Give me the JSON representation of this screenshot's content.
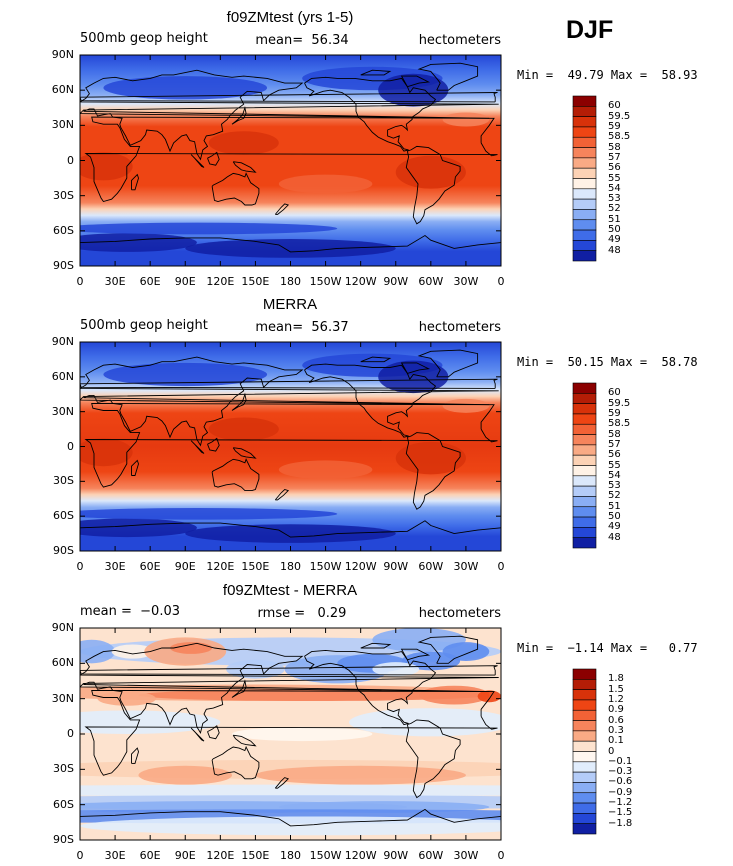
{
  "season": "DJF",
  "panels": [
    {
      "title": "f09ZMtest (yrs 1-5)",
      "left_label": "500mb geop height",
      "center_label": "mean=  56.34",
      "right_label": "hectometers",
      "minmax": "Min =  49.79 Max =  58.93",
      "field": "model"
    },
    {
      "title": "MERRA",
      "left_label": "500mb geop height",
      "center_label": "mean=  56.37",
      "right_label": "hectometers",
      "minmax": "Min =  50.15 Max =  58.78",
      "field": "obs"
    },
    {
      "title": "f09ZMtest - MERRA",
      "left_label": "mean =  −0.03",
      "center_label": "rmse =   0.29",
      "right_label": "hectometers",
      "minmax": "Min =  −1.14 Max =   0.77",
      "field": "diff"
    }
  ],
  "lat_ticks": [
    "90N",
    "60N",
    "30N",
    "0",
    "30S",
    "60S",
    "90S"
  ],
  "lon_ticks": [
    "0",
    "30E",
    "60E",
    "90E",
    "120E",
    "150E",
    "180",
    "150W",
    "120W",
    "90W",
    "60W",
    "30W",
    "0"
  ],
  "colorbar_abs": {
    "labels": [
      "60",
      "59.5",
      "59",
      "58.5",
      "58",
      "57",
      "56",
      "55",
      "54",
      "53",
      "52",
      "51",
      "50",
      "49",
      "48"
    ],
    "colors": [
      "#8b0000",
      "#b41d06",
      "#d8320a",
      "#ee4514",
      "#f26236",
      "#f6845c",
      "#f9aa85",
      "#fcd2b5",
      "#fff2e6",
      "#dbe8fb",
      "#b4ccf8",
      "#8aaef4",
      "#5f8def",
      "#3f6ce8",
      "#2447d7",
      "#101fa3"
    ]
  },
  "colorbar_diff": {
    "labels": [
      "1.8",
      "1.5",
      "1.2",
      "0.9",
      "0.6",
      "0.3",
      "0.1",
      "0",
      "−0.1",
      "−0.3",
      "−0.6",
      "−0.9",
      "−1.2",
      "−1.5",
      "−1.8"
    ],
    "colors": [
      "#8b0000",
      "#b41d06",
      "#d8320a",
      "#ee4514",
      "#f26236",
      "#f6845c",
      "#f9aa85",
      "#fde3cf",
      "#fff7f0",
      "#e1edfc",
      "#b4ccf8",
      "#8aaef4",
      "#5f8def",
      "#3f6ce8",
      "#2447d7",
      "#101fa3"
    ]
  }
}
